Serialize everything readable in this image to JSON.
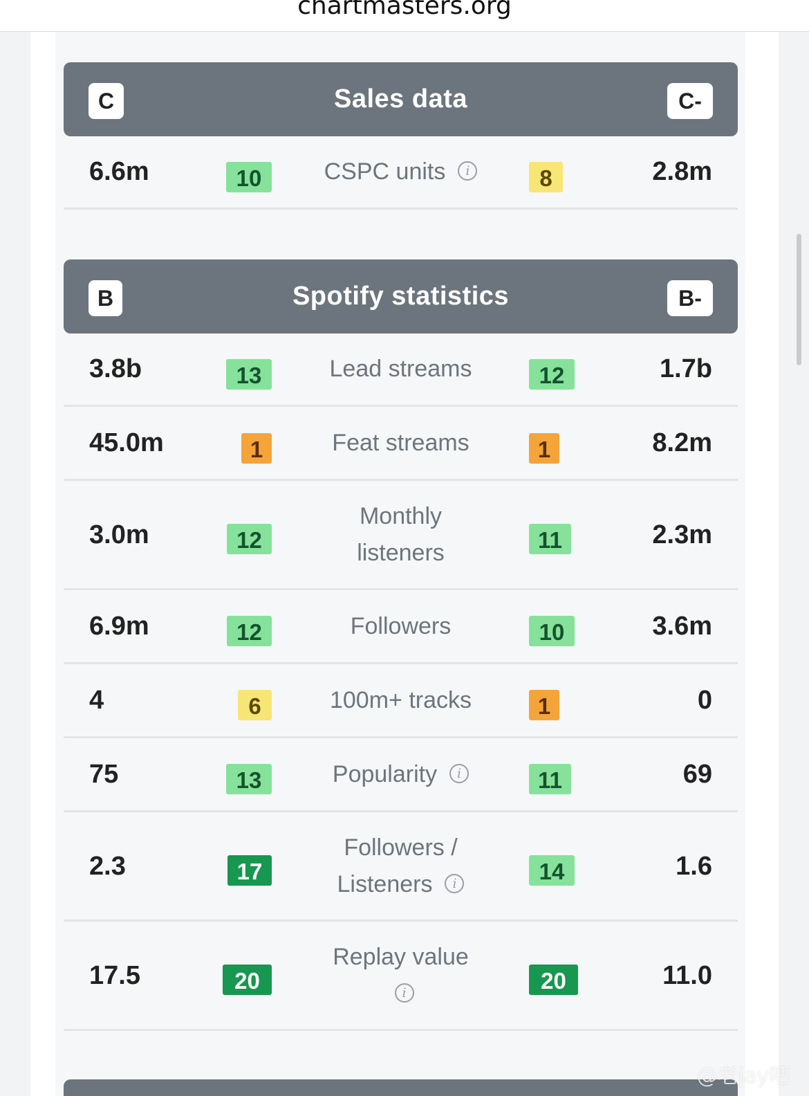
{
  "browser": {
    "url": "chartmasters.org"
  },
  "sections": [
    {
      "title": "Sales data",
      "grade_left": "C",
      "grade_right": "C-",
      "rows": [
        {
          "label": "CSPC units",
          "info": true,
          "left_value": "6.6m",
          "left_score": "10",
          "right_score": "8",
          "right_value": "2.8m"
        }
      ]
    },
    {
      "title": "Spotify statistics",
      "grade_left": "B",
      "grade_right": "B-",
      "rows": [
        {
          "label": "Lead streams",
          "left_value": "3.8b",
          "left_score": "13",
          "right_score": "12",
          "right_value": "1.7b"
        },
        {
          "label": "Feat streams",
          "left_value": "45.0m",
          "left_score": "1",
          "right_score": "1",
          "right_value": "8.2m"
        },
        {
          "label_line1": "Monthly",
          "label_line2": "listeners",
          "left_value": "3.0m",
          "left_score": "12",
          "right_score": "11",
          "right_value": "2.3m"
        },
        {
          "label": "Followers",
          "left_value": "6.9m",
          "left_score": "12",
          "right_score": "10",
          "right_value": "3.6m"
        },
        {
          "label": "100m+ tracks",
          "left_value": "4",
          "left_score": "6",
          "right_score": "1",
          "right_value": "0"
        },
        {
          "label": "Popularity",
          "info": true,
          "left_value": "75",
          "left_score": "13",
          "right_score": "11",
          "right_value": "69"
        },
        {
          "label_line1": "Followers /",
          "label_line2": "Listeners",
          "info": true,
          "left_value": "2.3",
          "left_score": "17",
          "right_score": "14",
          "right_value": "1.6"
        },
        {
          "label_line1": "Replay value",
          "info": true,
          "left_value": "17.5",
          "left_score": "20",
          "right_score": "20",
          "right_value": "11.0"
        }
      ]
    }
  ],
  "icons": {
    "info": "info-circle-icon"
  },
  "colors": {
    "header_bg": "#6c757d",
    "score_light_green": "#86e29b",
    "score_dark_green": "#17974f",
    "score_yellow": "#f7e675",
    "score_orange": "#f5a43a"
  },
  "watermark": "@老jay吧"
}
